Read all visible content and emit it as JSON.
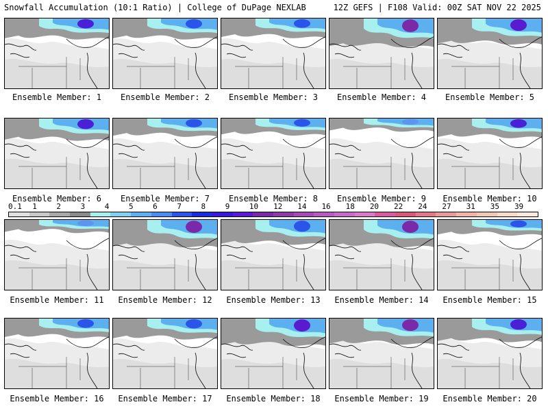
{
  "header": {
    "left_title": "Snowfall Accumulation (10:1 Ratio) | College of DuPage NEXLAB",
    "right_title": "12Z GEFS | F108 Valid: 00Z SAT NOV 22 2025"
  },
  "panels": [
    {
      "label": "Ensemble Member: 1",
      "north_snow": 0.55,
      "max_color": "#4a1fd6"
    },
    {
      "label": "Ensemble Member: 2",
      "north_snow": 0.55,
      "max_color": "#2b55e8"
    },
    {
      "label": "Ensemble Member: 3",
      "north_snow": 0.5,
      "max_color": "#2b55e8"
    },
    {
      "label": "Ensemble Member: 4",
      "north_snow": 0.85,
      "max_color": "#7a2aa8"
    },
    {
      "label": "Ensemble Member: 5",
      "north_snow": 0.75,
      "max_color": "#5a1ad0"
    },
    {
      "label": "Ensemble Member: 6",
      "north_snow": 0.6,
      "max_color": "#4a1fd6"
    },
    {
      "label": "Ensemble Member: 7",
      "north_snow": 0.45,
      "max_color": "#2b55e8"
    },
    {
      "label": "Ensemble Member: 8",
      "north_snow": 0.4,
      "max_color": "#2b55e8"
    },
    {
      "label": "Ensemble Member: 9",
      "north_snow": 0.25,
      "max_color": "#5b95f0"
    },
    {
      "label": "Ensemble Member: 10",
      "north_snow": 0.5,
      "max_color": "#4a1fd6"
    },
    {
      "label": "Ensemble Member: 11",
      "north_snow": 0.25,
      "max_color": "#5b95f0"
    },
    {
      "label": "Ensemble Member: 12",
      "north_snow": 0.8,
      "max_color": "#7a2aa8"
    },
    {
      "label": "Ensemble Member: 13",
      "north_snow": 0.7,
      "max_color": "#2b55e8"
    },
    {
      "label": "Ensemble Member: 14",
      "north_snow": 0.8,
      "max_color": "#7a2aa8"
    },
    {
      "label": "Ensemble Member: 15",
      "north_snow": 0.35,
      "max_color": "#2b55e8"
    },
    {
      "label": "Ensemble Member: 16",
      "north_snow": 0.5,
      "max_color": "#2b55e8"
    },
    {
      "label": "Ensemble Member: 17",
      "north_snow": 0.55,
      "max_color": "#2b55e8"
    },
    {
      "label": "Ensemble Member: 18",
      "north_snow": 0.8,
      "max_color": "#5a1ad0"
    },
    {
      "label": "Ensemble Member: 19",
      "north_snow": 0.75,
      "max_color": "#7a2aa8"
    },
    {
      "label": "Ensemble Member: 20",
      "north_snow": 0.65,
      "max_color": "#4a1fd6"
    }
  ],
  "colorbar": {
    "labels": [
      "0.1",
      "1",
      "2",
      "3",
      "4",
      "5",
      "6",
      "7",
      "8",
      "9",
      "10",
      "12",
      "14",
      "16",
      "18",
      "20",
      "22",
      "24",
      "27",
      "31",
      "35",
      "39"
    ],
    "colors": [
      "#e0e0e0",
      "#c8c8c8",
      "#a8a8a8",
      "#8a8a8a",
      "#a8f0f0",
      "#7fd3f0",
      "#5cb0f0",
      "#4a8cf0",
      "#2b55e8",
      "#1a2ee0",
      "#3a1ad8",
      "#5a1ad0",
      "#7a2aa8",
      "#8e3aa8",
      "#a54ab4",
      "#b85ac0",
      "#c86ac8",
      "#d87ac8",
      "#d85aa0",
      "#d8587a",
      "#e07a8a",
      "#e89a9a",
      "#f0b4a8",
      "#f0c8b4",
      "#f8dcc8",
      "#fce8dc"
    ]
  }
}
